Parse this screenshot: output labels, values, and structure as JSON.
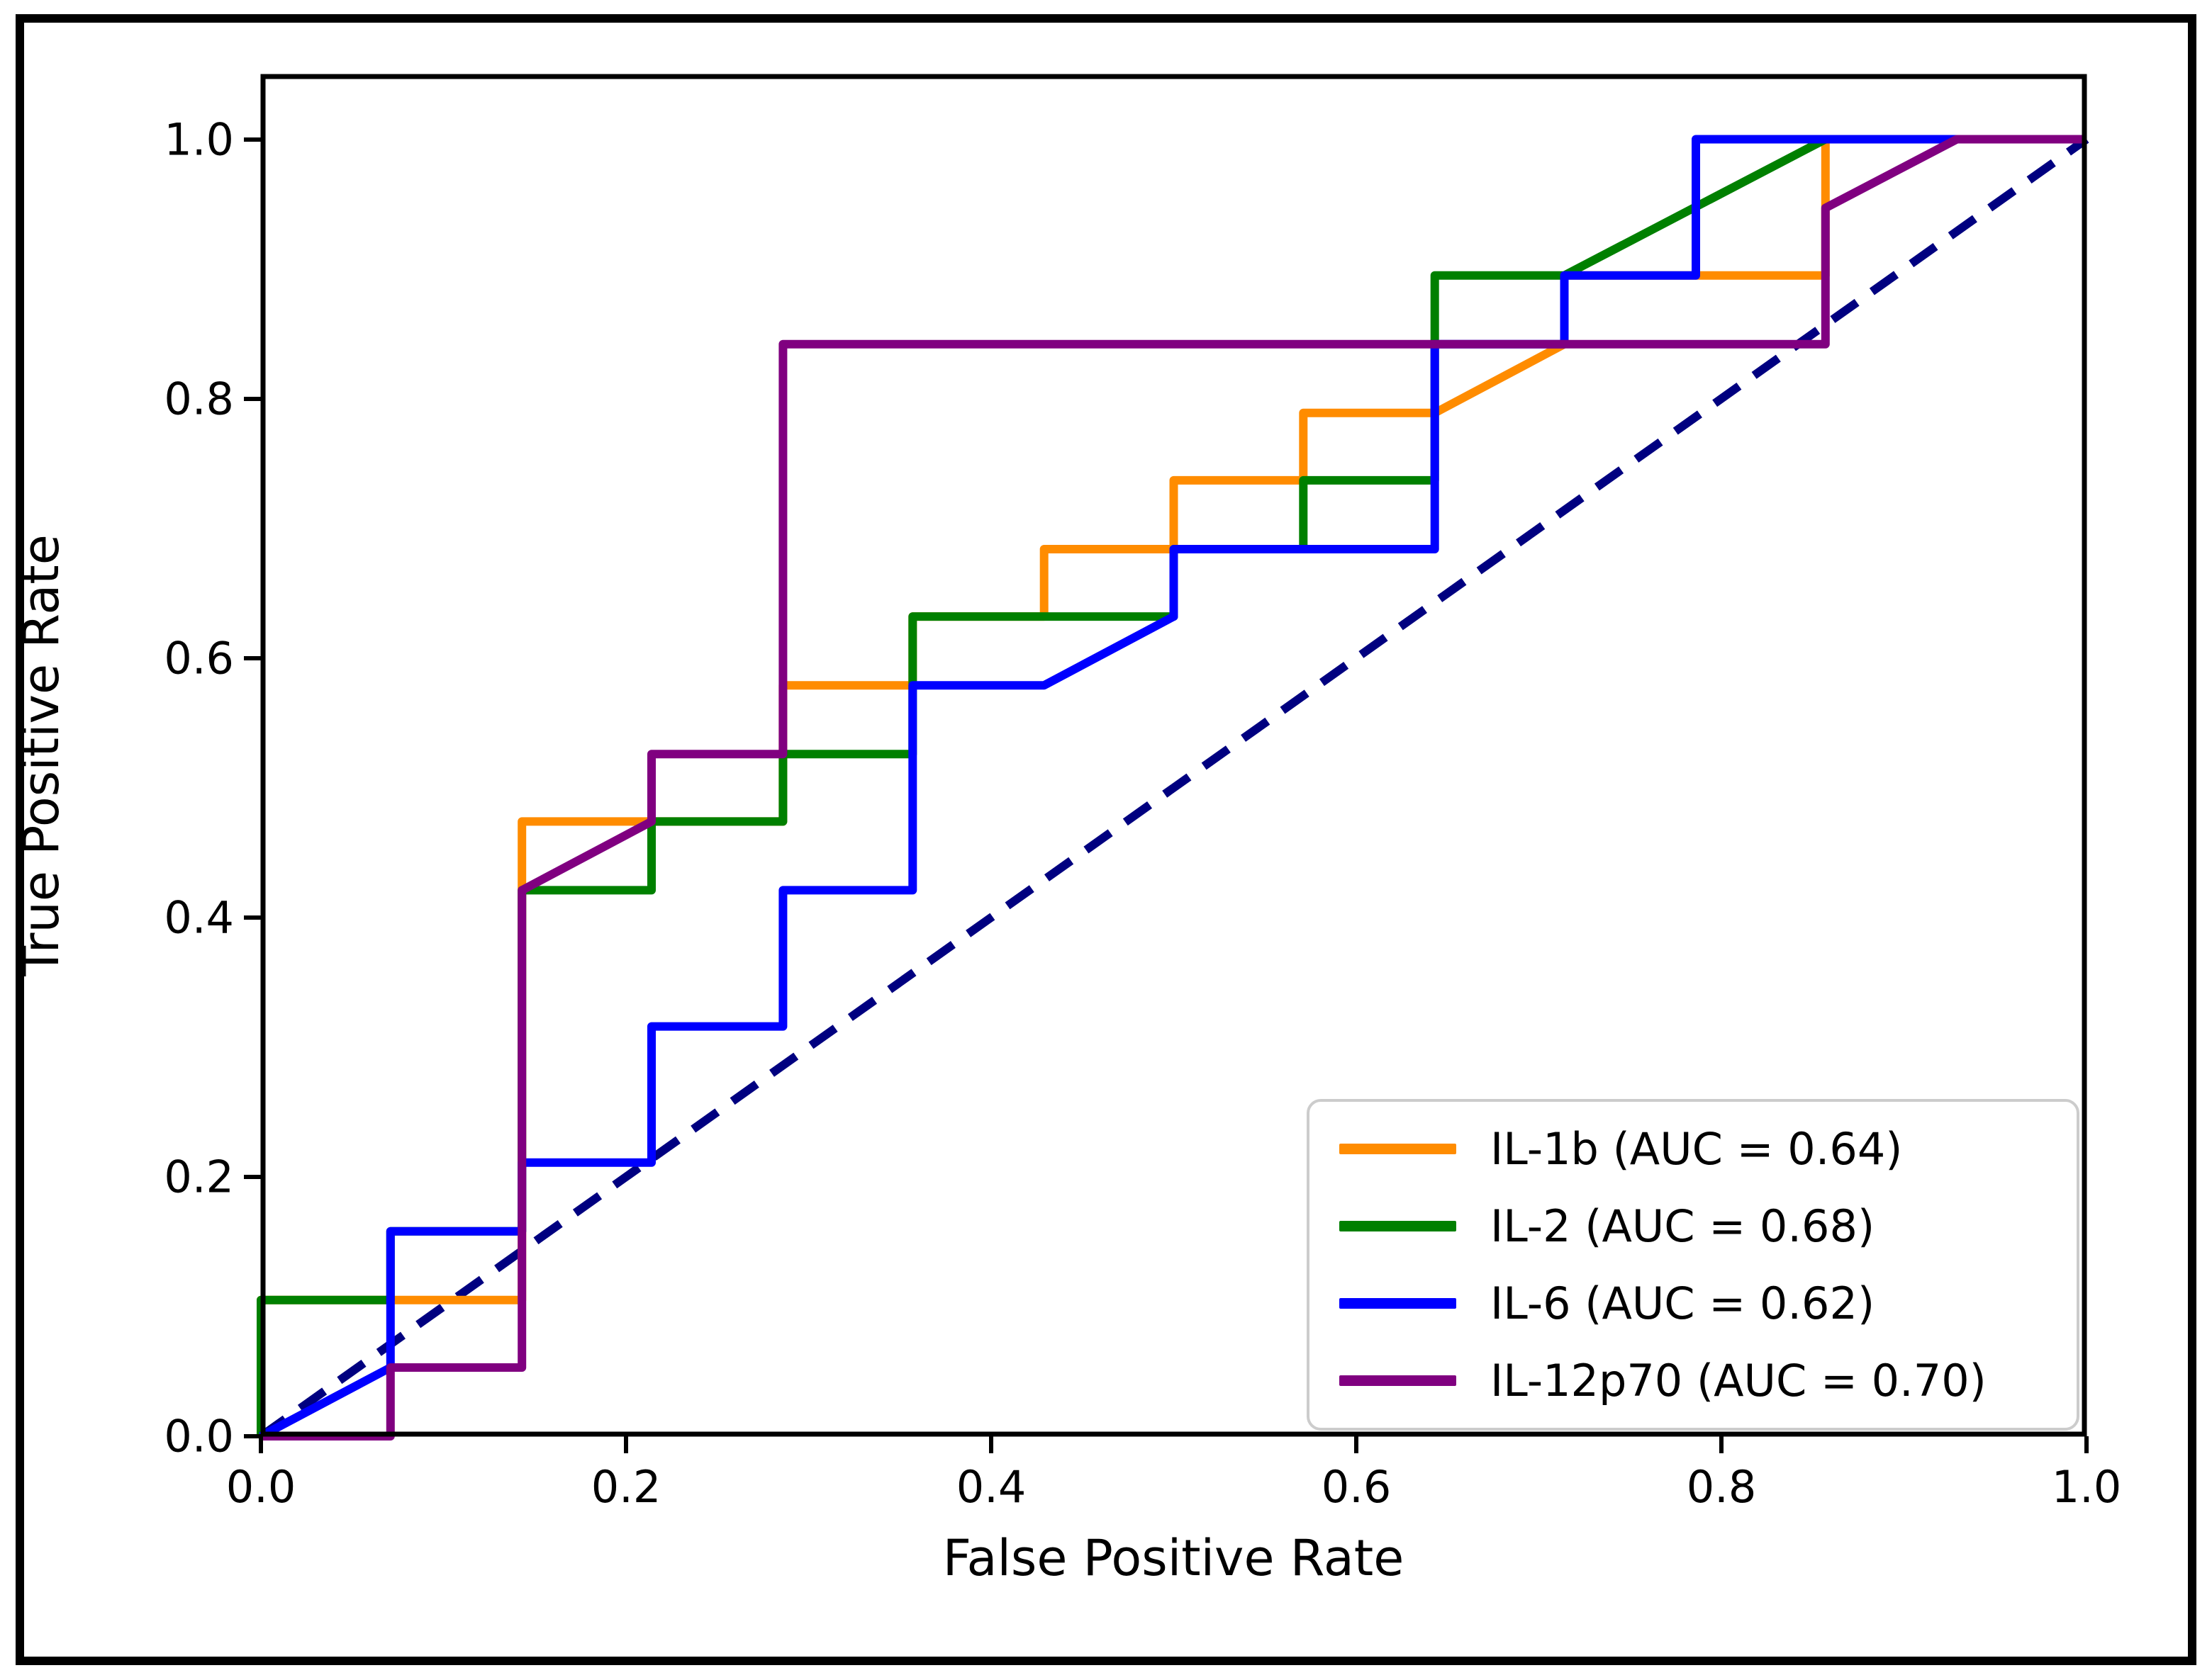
{
  "chart_data": {
    "type": "line",
    "title": "",
    "xlabel": "False Positive Rate",
    "ylabel": "True Positive Rate",
    "xlim": [
      0.0,
      1.0
    ],
    "ylim": [
      0.0,
      1.05
    ],
    "grid": false,
    "legend_position": "lower right",
    "xticks": {
      "values": [
        0.0,
        0.2,
        0.4,
        0.6,
        0.8,
        1.0
      ],
      "labels": [
        "0.0",
        "0.2",
        "0.4",
        "0.6",
        "0.8",
        "1.0"
      ]
    },
    "yticks": {
      "values": [
        0.0,
        0.2,
        0.4,
        0.6,
        0.8,
        1.0
      ],
      "labels": [
        "0.0",
        "0.2",
        "0.4",
        "0.6",
        "0.8",
        "1.0"
      ]
    },
    "series": [
      {
        "name": "IL-1b (AUC = 0.64)",
        "auc": 0.64,
        "color": "#ff8c00",
        "points": [
          [
            0,
            0
          ],
          [
            0,
            0.105
          ],
          [
            0.143,
            0.105
          ],
          [
            0.143,
            0.474
          ],
          [
            0.286,
            0.474
          ],
          [
            0.286,
            0.579
          ],
          [
            0.357,
            0.579
          ],
          [
            0.357,
            0.632
          ],
          [
            0.429,
            0.632
          ],
          [
            0.429,
            0.684
          ],
          [
            0.5,
            0.684
          ],
          [
            0.5,
            0.737
          ],
          [
            0.571,
            0.737
          ],
          [
            0.571,
            0.789
          ],
          [
            0.643,
            0.789
          ],
          [
            0.714,
            0.842
          ],
          [
            0.714,
            0.895
          ],
          [
            0.857,
            0.895
          ],
          [
            0.857,
            1.0
          ],
          [
            1,
            1
          ]
        ]
      },
      {
        "name": "IL-2 (AUC = 0.68)",
        "auc": 0.68,
        "color": "#008000",
        "points": [
          [
            0,
            0
          ],
          [
            0,
            0.105
          ],
          [
            0.071,
            0.105
          ],
          [
            0.071,
            0.158
          ],
          [
            0.143,
            0.158
          ],
          [
            0.143,
            0.421
          ],
          [
            0.214,
            0.421
          ],
          [
            0.214,
            0.474
          ],
          [
            0.286,
            0.474
          ],
          [
            0.286,
            0.526
          ],
          [
            0.357,
            0.526
          ],
          [
            0.357,
            0.632
          ],
          [
            0.5,
            0.632
          ],
          [
            0.5,
            0.684
          ],
          [
            0.571,
            0.684
          ],
          [
            0.571,
            0.737
          ],
          [
            0.643,
            0.737
          ],
          [
            0.643,
            0.895
          ],
          [
            0.714,
            0.895
          ],
          [
            0.857,
            1.0
          ],
          [
            1,
            1
          ]
        ]
      },
      {
        "name": "IL-6 (AUC = 0.62)",
        "auc": 0.62,
        "color": "#0000ff",
        "points": [
          [
            0,
            0
          ],
          [
            0.071,
            0.053
          ],
          [
            0.071,
            0.158
          ],
          [
            0.143,
            0.158
          ],
          [
            0.143,
            0.211
          ],
          [
            0.214,
            0.211
          ],
          [
            0.214,
            0.316
          ],
          [
            0.286,
            0.316
          ],
          [
            0.286,
            0.421
          ],
          [
            0.357,
            0.421
          ],
          [
            0.357,
            0.579
          ],
          [
            0.429,
            0.579
          ],
          [
            0.5,
            0.632
          ],
          [
            0.5,
            0.684
          ],
          [
            0.643,
            0.684
          ],
          [
            0.643,
            0.842
          ],
          [
            0.714,
            0.842
          ],
          [
            0.714,
            0.895
          ],
          [
            0.786,
            0.895
          ],
          [
            0.786,
            1.0
          ],
          [
            1,
            1
          ]
        ]
      },
      {
        "name": "IL-12p70 (AUC = 0.70)",
        "auc": 0.7,
        "color": "#800080",
        "points": [
          [
            0,
            0
          ],
          [
            0.071,
            0
          ],
          [
            0.071,
            0.053
          ],
          [
            0.143,
            0.053
          ],
          [
            0.143,
            0.421
          ],
          [
            0.214,
            0.474
          ],
          [
            0.214,
            0.526
          ],
          [
            0.286,
            0.526
          ],
          [
            0.286,
            0.842
          ],
          [
            0.857,
            0.842
          ],
          [
            0.857,
            0.947
          ],
          [
            0.929,
            1.0
          ],
          [
            1,
            1
          ]
        ]
      }
    ],
    "reference_line": {
      "name": "chance-diagonal",
      "color": "#000080",
      "dashed": true,
      "points": [
        [
          0,
          0
        ],
        [
          1,
          1
        ]
      ]
    }
  }
}
